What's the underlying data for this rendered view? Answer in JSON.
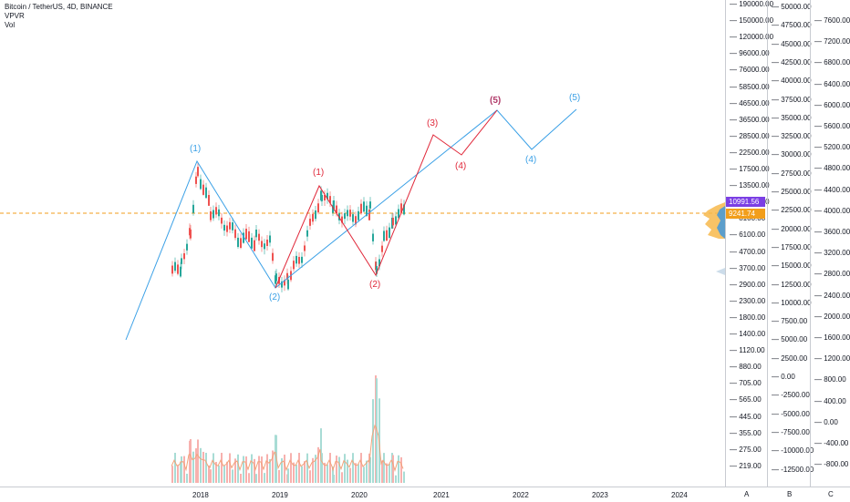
{
  "legend": {
    "symbol_line": "Bitcoin / TetherUS, 4D, BINANCE",
    "indicator1": "VPVR",
    "indicator2": "Vol"
  },
  "price_scale_log": [
    "190000.00",
    "150000.00",
    "120000.00",
    "96000.00",
    "76000.00",
    "58500.00",
    "46500.00",
    "36500.00",
    "28500.00",
    "22500.00",
    "17500.00",
    "13500.00",
    "10600.00",
    "8100.00",
    "6100.00",
    "4700.00",
    "3700.00",
    "2900.00",
    "2300.00",
    "1800.00",
    "1400.00",
    "1120.00",
    "880.00",
    "705.00",
    "565.00",
    "445.00",
    "355.00",
    "275.00",
    "219.00"
  ],
  "scale_b": [
    "50000.00",
    "47500.00",
    "45000.00",
    "42500.00",
    "40000.00",
    "37500.00",
    "35000.00",
    "32500.00",
    "30000.00",
    "27500.00",
    "25000.00",
    "22500.00",
    "20000.00",
    "17500.00",
    "15000.00",
    "12500.00",
    "10000.00",
    "7500.00",
    "5000.00",
    "2500.00",
    "0.00",
    "-2500.00",
    "-5000.00",
    "-7500.00",
    "-10000.00",
    "-12500.00"
  ],
  "scale_c": [
    "7600.00",
    "7200.00",
    "6800.00",
    "6400.00",
    "6000.00",
    "5600.00",
    "5200.00",
    "4800.00",
    "4400.00",
    "4000.00",
    "3600.00",
    "3200.00",
    "2800.00",
    "2400.00",
    "2000.00",
    "1600.00",
    "1200.00",
    "800.00",
    "400.00",
    "0.00",
    "-400.00",
    "-800.00"
  ],
  "price_tags": {
    "last_price": "10991.56",
    "poc_price": "9241.74"
  },
  "time_axis": [
    "2018",
    "2019",
    "2020",
    "2021",
    "2022",
    "2023",
    "2024"
  ],
  "axis_letters": [
    "A",
    "B",
    "C"
  ],
  "wave_labels_blue": [
    "(1)",
    "(2)",
    "(4)",
    "(5)"
  ],
  "wave_labels_red": [
    "(1)",
    "(2)",
    "(3)",
    "(4)",
    "(5)"
  ],
  "colors": {
    "blue_wave": "#3aa0e6",
    "red_wave": "#e0283a",
    "bull": "#26a69a",
    "bear": "#ef5350",
    "last_price_bg": "#7b3fe4",
    "poc_bg": "#f29e1b",
    "vpvr": "#f7b84b",
    "vpvr_blue": "#4a9ad6"
  }
}
